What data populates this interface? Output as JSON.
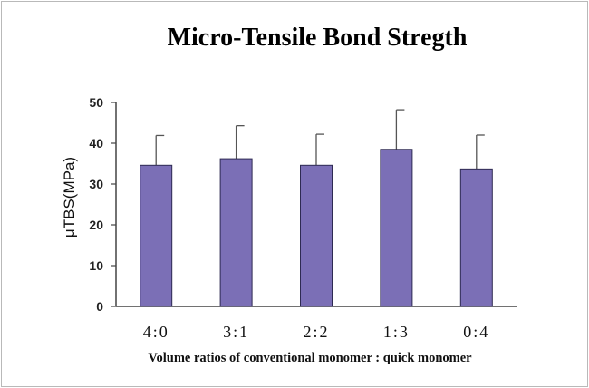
{
  "chart_data": {
    "type": "bar",
    "title": "Micro-Tensile Bond Stregth",
    "xlabel": "Volume ratios of conventional monomer : quick monomer",
    "ylabel": "μTBS(MPa)",
    "categories": [
      "4:0",
      "3:1",
      "2:2",
      "1:3",
      "0:4"
    ],
    "values": [
      34.6,
      36.2,
      34.6,
      38.5,
      33.7
    ],
    "error": [
      7.3,
      8.1,
      7.6,
      9.7,
      8.3
    ],
    "ylim": [
      0,
      50
    ],
    "yticks": [
      0,
      10,
      20,
      30,
      40,
      50
    ],
    "grid": false,
    "legend": "none",
    "colors": {
      "bar_fill": "#7b6fb6",
      "bar_stroke": "#2e2a52",
      "axis": "#444444"
    }
  }
}
